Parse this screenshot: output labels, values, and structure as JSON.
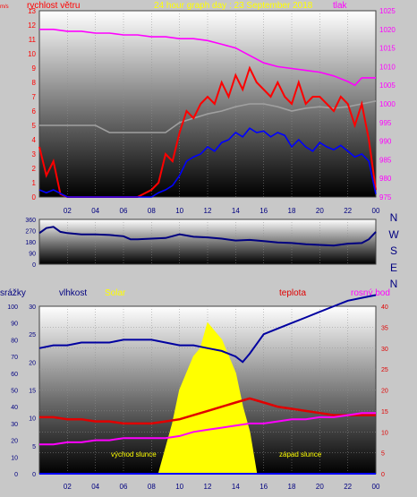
{
  "colors": {
    "wind": "#ff0000",
    "wind_avg": "#0000ff",
    "wind_gray": "#a0a0a0",
    "pressure": "#ff00ff",
    "direction": "#000080",
    "humidity": "#0000a0",
    "temperature": "#e00000",
    "dewpoint": "#ff00ff",
    "solar": "#ffff00",
    "rain": "#0000ff"
  },
  "header": {
    "title": "24 hour graph day : 23 September 2018"
  },
  "chart_data": [
    {
      "type": "line",
      "title": "24 hour graph day : 23 September 2018",
      "y_left_label": "rychlost větru",
      "y_right_label": "tlak",
      "y_left_unit": "m/s",
      "ylim_left": [
        0,
        13
      ],
      "ylim_right": [
        975,
        1025
      ],
      "y_left_ticks": [
        "0",
        "1",
        "2",
        "3",
        "4",
        "5",
        "6",
        "7",
        "8",
        "9",
        "10",
        "11",
        "12",
        "13"
      ],
      "y_right_ticks": [
        "975",
        "980",
        "985",
        "990",
        "995",
        "1000",
        "1005",
        "1010",
        "1015",
        "1020",
        "1025"
      ],
      "x_ticks": [
        "02",
        "04",
        "06",
        "08",
        "10",
        "12",
        "14",
        "16",
        "18",
        "20",
        "22",
        "00"
      ],
      "xlim": [
        0,
        24
      ],
      "series": [
        {
          "name": "tlak",
          "axis": "right",
          "x": [
            0,
            1,
            2,
            3,
            4,
            5,
            6,
            7,
            8,
            9,
            10,
            11,
            12,
            13,
            14,
            15,
            16,
            17,
            18,
            19,
            20,
            21,
            22,
            22.5,
            23,
            24
          ],
          "values": [
            1020,
            1020,
            1019.5,
            1019.5,
            1019,
            1019,
            1018.5,
            1018.5,
            1018,
            1018,
            1017.5,
            1017.5,
            1017,
            1016,
            1015,
            1013,
            1011,
            1010,
            1009.5,
            1009,
            1008.5,
            1007.5,
            1006,
            1005,
            1007,
            1007
          ]
        },
        {
          "name": "gust",
          "axis": "left",
          "x": [
            0,
            0.5,
            1,
            1.5,
            2,
            3,
            4,
            5,
            6,
            7,
            8,
            8.5,
            9,
            9.5,
            10,
            10.5,
            11,
            11.5,
            12,
            12.5,
            13,
            13.5,
            14,
            14.5,
            15,
            15.5,
            16,
            16.5,
            17,
            17.5,
            18,
            18.5,
            19,
            19.5,
            20,
            20.5,
            21,
            21.5,
            22,
            22.5,
            23,
            23.5,
            24
          ],
          "values": [
            3.5,
            1.5,
            2.5,
            0.2,
            0,
            0,
            0,
            0,
            0,
            0,
            0.5,
            1,
            3,
            2.5,
            4.5,
            6,
            5.5,
            6.5,
            7,
            6.5,
            8,
            7,
            8.5,
            7.5,
            9,
            8,
            7.5,
            7,
            8,
            7,
            6.5,
            8,
            6.5,
            7,
            7,
            6.5,
            6,
            7,
            6.5,
            5,
            6.5,
            4,
            0.5
          ]
        },
        {
          "name": "wind_avg",
          "axis": "left",
          "x": [
            0,
            0.5,
            1,
            2,
            3,
            4,
            5,
            6,
            7,
            8,
            8.5,
            9,
            9.5,
            10,
            10.5,
            11,
            11.5,
            12,
            12.5,
            13,
            13.5,
            14,
            14.5,
            15,
            15.5,
            16,
            16.5,
            17,
            17.5,
            18,
            18.5,
            19,
            19.5,
            20,
            20.5,
            21,
            21.5,
            22,
            22.5,
            23,
            23.5,
            24
          ],
          "values": [
            0.5,
            0.3,
            0.5,
            0,
            0,
            0,
            0,
            0,
            0,
            0,
            0.3,
            0.5,
            0.8,
            1.5,
            2.5,
            2.8,
            3,
            3.5,
            3.2,
            3.8,
            4,
            4.5,
            4.2,
            4.8,
            4.5,
            4.6,
            4.2,
            4.5,
            4.3,
            3.5,
            4,
            3.5,
            3.2,
            3.8,
            3.5,
            3.3,
            3.6,
            3.2,
            2.8,
            3,
            2.5,
            0.2
          ]
        },
        {
          "name": "wind_gray",
          "axis": "left",
          "x": [
            0,
            1,
            2,
            3,
            4,
            5,
            6,
            7,
            8,
            9,
            10,
            11,
            12,
            13,
            14,
            15,
            16,
            17,
            18,
            19,
            20,
            21,
            22,
            23,
            24
          ],
          "values": [
            5,
            5,
            5,
            5,
            5,
            4.5,
            4.5,
            4.5,
            4.5,
            4.5,
            5.2,
            5.5,
            5.8,
            6,
            6.3,
            6.5,
            6.5,
            6.3,
            6,
            6.2,
            6.3,
            6.2,
            6.3,
            6.5,
            6.7
          ]
        }
      ]
    },
    {
      "type": "line",
      "title": "",
      "ylim": [
        0,
        360
      ],
      "y_ticks": [
        "0",
        "90",
        "180",
        "270",
        "360"
      ],
      "right_labels": [
        "N",
        "W",
        "S",
        "E",
        "N"
      ],
      "xlim": [
        0,
        24
      ],
      "series": [
        {
          "name": "direction",
          "x": [
            0,
            0.5,
            1,
            1.5,
            2,
            3,
            4,
            5,
            6,
            6.5,
            7,
            8,
            9,
            10,
            11,
            12,
            13,
            14,
            15,
            16,
            17,
            18,
            19,
            20,
            21,
            22,
            23,
            23.5,
            24
          ],
          "values": [
            250,
            290,
            300,
            260,
            250,
            240,
            240,
            235,
            225,
            200,
            200,
            205,
            210,
            240,
            220,
            215,
            205,
            190,
            195,
            185,
            175,
            170,
            160,
            155,
            150,
            165,
            170,
            200,
            260
          ]
        }
      ]
    },
    {
      "type": "line",
      "title": "",
      "labels_top": [
        "srážky",
        "vlhkost",
        "Solar",
        "teplota",
        "rosný bod"
      ],
      "ylim_rain": [
        0,
        100
      ],
      "ylim_humidity": [
        0,
        30
      ],
      "ylim_temp": [
        0,
        40
      ],
      "rain_ticks": [
        "0",
        "10",
        "20",
        "30",
        "40",
        "50",
        "60",
        "70",
        "80",
        "90",
        "100"
      ],
      "humidity_ticks": [
        "0",
        "5",
        "10",
        "15",
        "20",
        "25",
        "30"
      ],
      "temp_ticks": [
        "0",
        "5",
        "10",
        "15",
        "20",
        "25",
        "30",
        "35",
        "40"
      ],
      "annotations": [
        "východ slunce",
        "západ slunce"
      ],
      "x_ticks": [
        "02",
        "04",
        "06",
        "08",
        "10",
        "12",
        "14",
        "16",
        "18",
        "20",
        "22",
        "00"
      ],
      "xlim": [
        0,
        24
      ],
      "series": [
        {
          "name": "vlhkost",
          "axis": "humidity",
          "x": [
            0,
            1,
            2,
            3,
            4,
            5,
            6,
            7,
            8,
            9,
            10,
            11,
            12,
            13,
            14,
            14.5,
            15,
            16,
            17,
            18,
            19,
            20,
            21,
            22,
            23,
            24
          ],
          "values": [
            22.5,
            23,
            23,
            23.5,
            23.5,
            23.5,
            24,
            24,
            24,
            23.5,
            23,
            23,
            22.5,
            22,
            21,
            20,
            21.5,
            25,
            26,
            27,
            28,
            29,
            30,
            31,
            31.5,
            32
          ]
        },
        {
          "name": "teplota",
          "axis": "temp",
          "x": [
            0,
            1,
            2,
            3,
            4,
            5,
            6,
            7,
            8,
            9,
            10,
            11,
            12,
            13,
            14,
            15,
            16,
            17,
            18,
            19,
            20,
            21,
            22,
            23,
            24
          ],
          "values": [
            13.5,
            13.5,
            13,
            13,
            12.5,
            12.5,
            12,
            12,
            12,
            12.5,
            13,
            14,
            15,
            16,
            17,
            18,
            17,
            16,
            15.5,
            15,
            14.5,
            14,
            14,
            14,
            14
          ]
        },
        {
          "name": "rosný bod",
          "axis": "temp",
          "x": [
            0,
            1,
            2,
            3,
            4,
            5,
            6,
            7,
            8,
            9,
            10,
            11,
            12,
            13,
            14,
            15,
            16,
            17,
            18,
            19,
            20,
            21,
            22,
            23,
            24
          ],
          "values": [
            7,
            7,
            7.5,
            7.5,
            8,
            8,
            8.5,
            8.5,
            8.5,
            8.5,
            9,
            10,
            10.5,
            11,
            11.5,
            12,
            12,
            12.5,
            13,
            13,
            13.5,
            13.5,
            14,
            14.5,
            14.5
          ]
        },
        {
          "name": "Solar",
          "axis": "solar",
          "x": [
            0,
            8.5,
            9,
            9.5,
            10,
            10.5,
            11,
            11.5,
            12,
            12.5,
            13,
            13.5,
            14,
            14.5,
            15,
            15.5,
            24
          ],
          "values": [
            0,
            0,
            15,
            30,
            50,
            60,
            70,
            75,
            90,
            85,
            80,
            70,
            60,
            40,
            25,
            0,
            0
          ]
        },
        {
          "name": "srážky",
          "axis": "rain",
          "x": [
            0,
            24
          ],
          "values": [
            0,
            0
          ]
        }
      ]
    }
  ]
}
